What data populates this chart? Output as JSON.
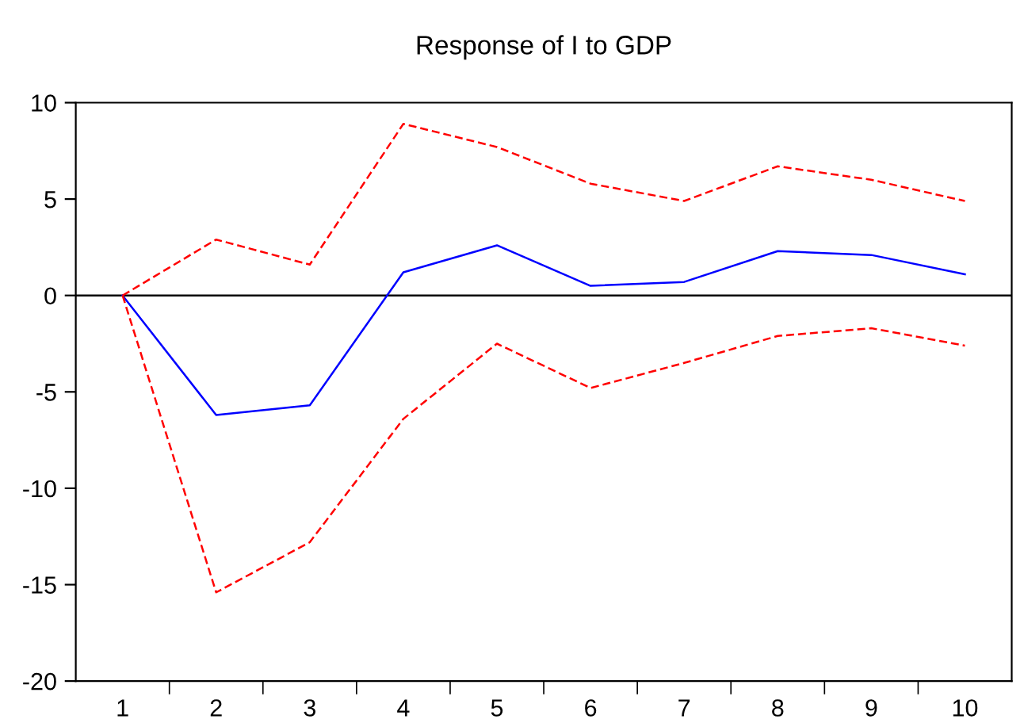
{
  "chart_data": {
    "type": "line",
    "title": "Response of I to GDP",
    "categories": [
      "1",
      "2",
      "3",
      "4",
      "5",
      "6",
      "7",
      "8",
      "9",
      "10"
    ],
    "series": [
      {
        "color": "#0000ff",
        "line_style": "solid",
        "values": [
          0,
          -6.2,
          -5.7,
          1.2,
          2.6,
          0.5,
          0.7,
          2.3,
          2.1,
          1.1
        ]
      },
      {
        "color": "#ff0000",
        "line_style": "dashed",
        "values": [
          0,
          2.9,
          1.6,
          8.9,
          7.7,
          5.8,
          4.9,
          6.7,
          6.0,
          4.9
        ]
      },
      {
        "color": "#ff0000",
        "line_style": "dashed",
        "values": [
          0,
          -15.4,
          -12.8,
          -6.4,
          -2.5,
          -4.8,
          -3.5,
          -2.1,
          -1.7,
          -2.6
        ]
      }
    ],
    "ylim": [
      -20,
      10
    ],
    "yticks": [
      -20,
      -15,
      -10,
      -5,
      0,
      5,
      10
    ],
    "ref_lines": [
      {
        "axis": "y",
        "value": 0,
        "label": null,
        "color": "#000000",
        "line_style": "solid"
      }
    ],
    "grid": false,
    "legend": false,
    "marker": "none"
  }
}
